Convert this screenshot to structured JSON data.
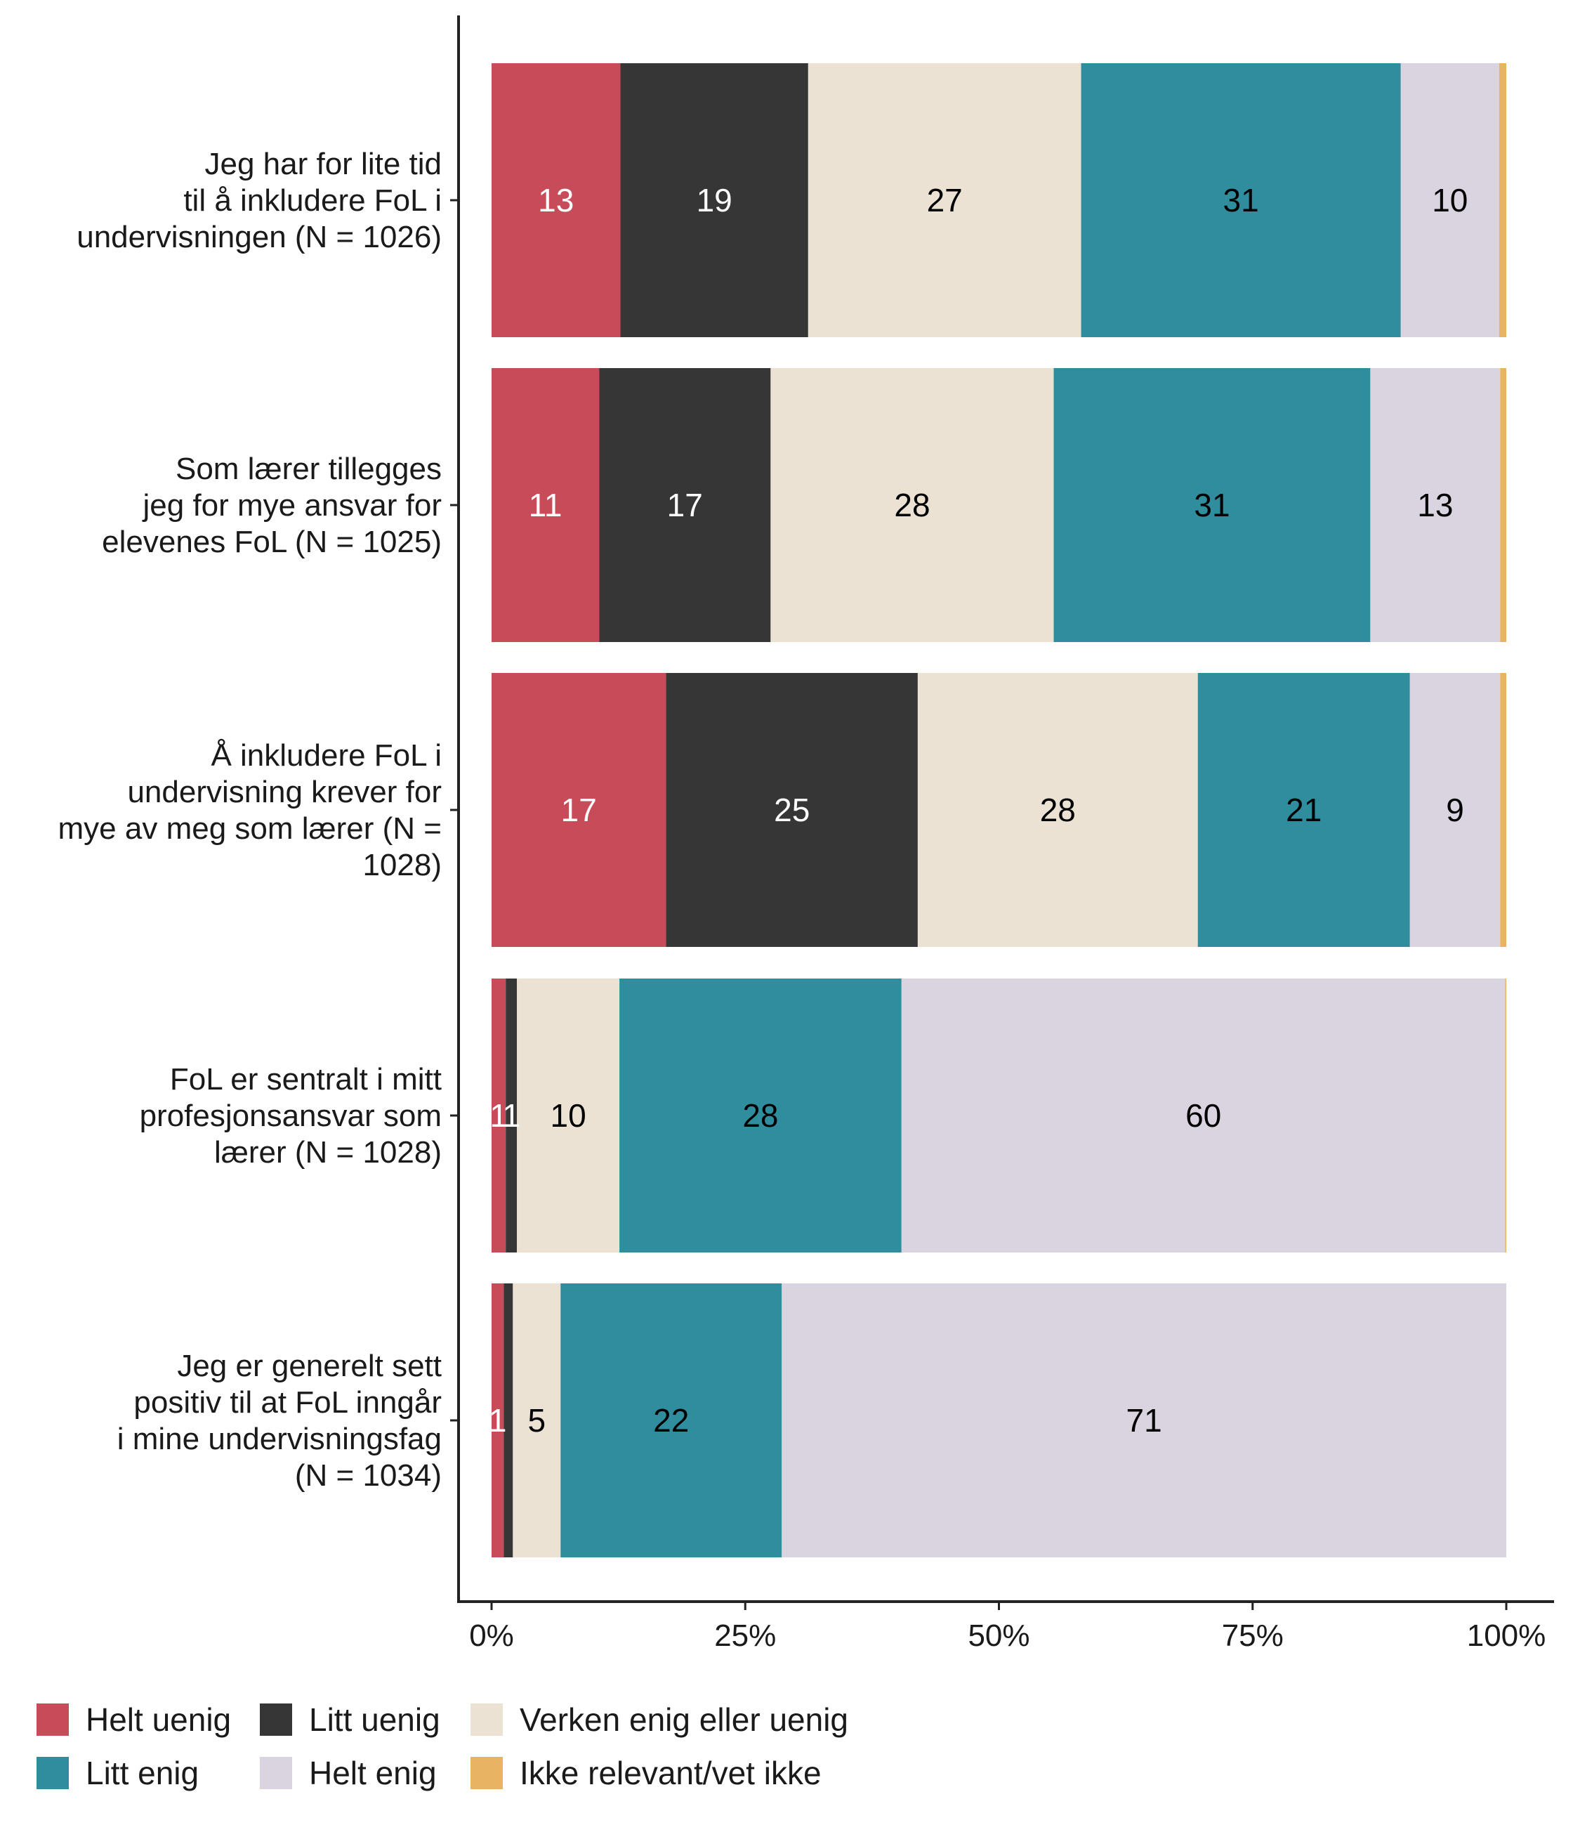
{
  "chart_data": {
    "type": "bar",
    "orientation": "horizontal",
    "stacked": true,
    "categories": [
      [
        "Jeg har for lite tid",
        "til å inkludere FoL i",
        "undervisningen (N = 1026)"
      ],
      [
        "Som lærer tillegges",
        "jeg for mye ansvar for",
        "elevenes FoL (N = 1025)"
      ],
      [
        "Å inkludere FoL i",
        "undervisning krever for",
        "mye av meg som lærer (N =",
        "1028)"
      ],
      [
        "FoL er sentralt i mitt",
        "profesjonsansvar som",
        "lærer (N = 1028)"
      ],
      [
        "Jeg er generelt sett",
        "positiv til at FoL inngår",
        "i mine undervisningsfag",
        "(N = 1034)"
      ]
    ],
    "series": [
      {
        "name": "Helt uenig",
        "color": "#c84b5a",
        "text_color": "#ffffff",
        "values": [
          12.7,
          10.6,
          17.2,
          1.4,
          1.2
        ],
        "labels": [
          "13",
          "11",
          "17",
          "1",
          "1"
        ]
      },
      {
        "name": "Litt uenig",
        "color": "#363636",
        "text_color": "#ffffff",
        "values": [
          18.5,
          16.9,
          24.8,
          1.1,
          0.9
        ],
        "labels": [
          "19",
          "17",
          "25",
          "1",
          ""
        ]
      },
      {
        "name": "Verken enig eller uenig",
        "color": "#ece2d3",
        "text_color": "#000000",
        "values": [
          26.9,
          27.9,
          27.6,
          10.1,
          4.7
        ],
        "labels": [
          "27",
          "28",
          "28",
          "10",
          "5"
        ]
      },
      {
        "name": "Litt enig",
        "color": "#2f8d9e",
        "text_color": "#000000",
        "values": [
          31.5,
          31.2,
          20.9,
          27.8,
          21.8
        ],
        "labels": [
          "31",
          "31",
          "21",
          "28",
          "22"
        ]
      },
      {
        "name": "Helt enig",
        "color": "#dad3e0",
        "text_color": "#000000",
        "values": [
          9.7,
          12.8,
          8.9,
          59.5,
          71.4
        ],
        "labels": [
          "10",
          "13",
          "9",
          "60",
          "71"
        ]
      },
      {
        "name": "Ikke relevant/vet ikke",
        "color": "#e8b363",
        "text_color": "#000000",
        "values": [
          0.7,
          0.6,
          0.6,
          0.1,
          0.0
        ],
        "labels": [
          "",
          "",
          "",
          "",
          ""
        ]
      }
    ],
    "xticks": [
      "0%",
      "25%",
      "50%",
      "75%",
      "100%"
    ],
    "xlim": [
      0,
      100
    ],
    "title": "",
    "xlabel": "",
    "ylabel": "",
    "legend_position": "bottom",
    "grid": false
  }
}
